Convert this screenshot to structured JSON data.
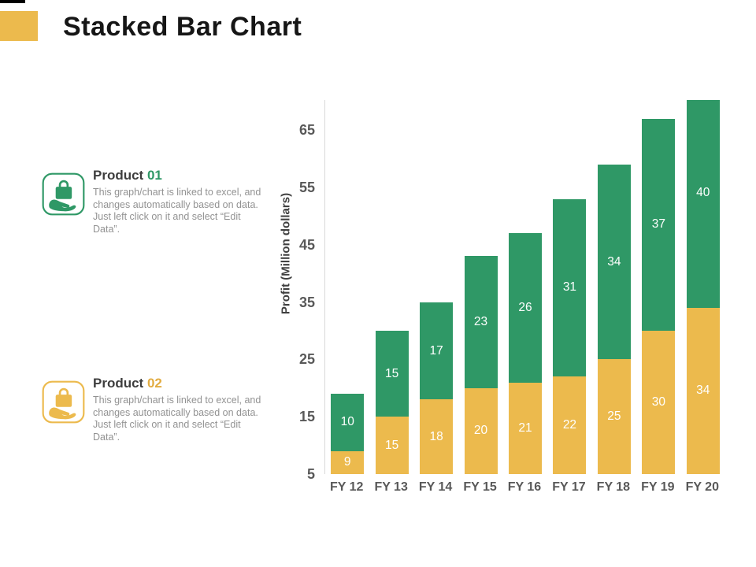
{
  "slide": {
    "title": "Stacked Bar Chart",
    "accent_color": "#ecba4d",
    "top_mark_color": "#000000"
  },
  "legend": [
    {
      "name": "Product",
      "number": "01",
      "color": "#2f9866",
      "icon": "hand-holding-bag-icon",
      "description": "This graph/chart is linked to excel, and changes automatically based on data. Just left click on it and select “Edit Data”."
    },
    {
      "name": "Product",
      "number": "02",
      "color": "#ecba4d",
      "icon": "hand-holding-bag-icon",
      "description": "This graph/chart is linked to excel, and changes automatically based on data. Just left click on it and select “Edit Data”."
    }
  ],
  "chart_data": {
    "type": "bar",
    "stacked": true,
    "categories": [
      "FY 12",
      "FY 13",
      "FY 14",
      "FY 15",
      "FY 16",
      "FY 17",
      "FY 18",
      "FY 19",
      "FY 20"
    ],
    "series": [
      {
        "name": "Product 02",
        "color": "#ecba4d",
        "values": [
          9,
          15,
          18,
          20,
          21,
          22,
          25,
          30,
          34
        ]
      },
      {
        "name": "Product 01",
        "color": "#2f9866",
        "values": [
          10,
          15,
          17,
          23,
          26,
          31,
          34,
          37,
          40
        ]
      }
    ],
    "ylabel": "Profit  (Million dollars)",
    "xlabel": "",
    "yticks": [
      5,
      15,
      25,
      35,
      45,
      55,
      65
    ],
    "ylim": [
      5,
      70.25
    ],
    "grid": false,
    "legend_position": "left",
    "value_label_color": "#ffffff",
    "axis_label_color": "#595959"
  }
}
